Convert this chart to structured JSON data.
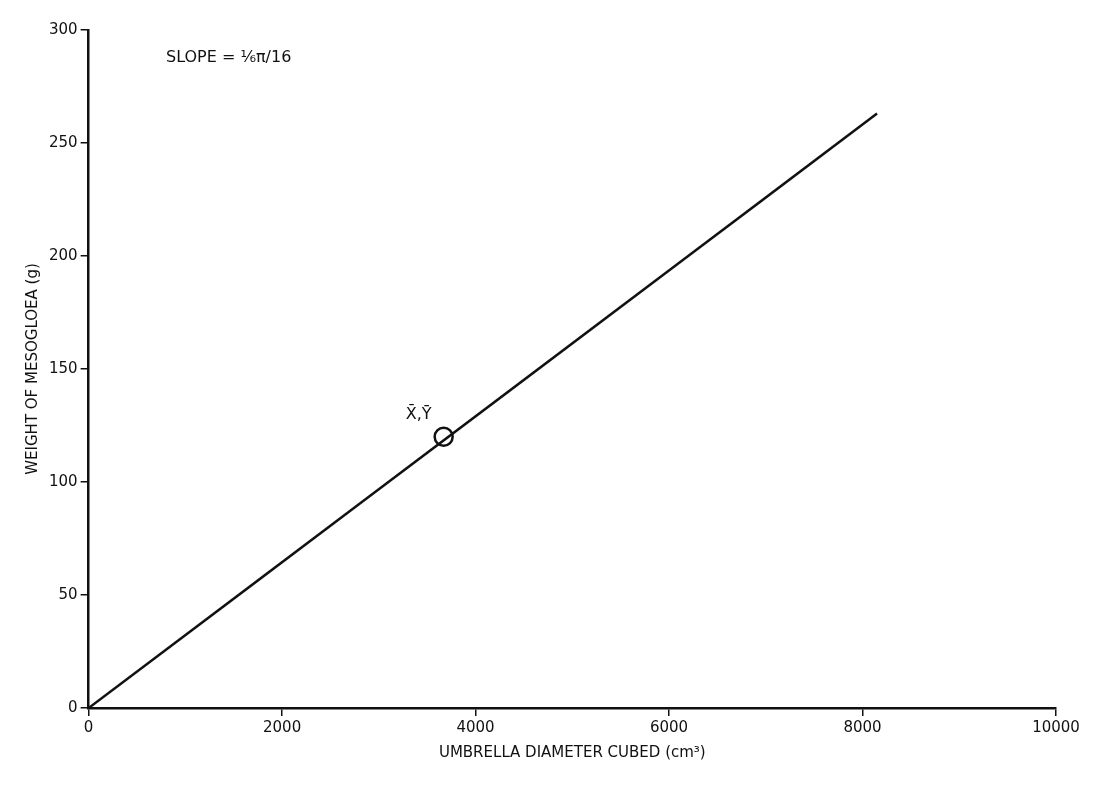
{
  "chart_data": {
    "type": "line",
    "xlabel": "UMBRELLA DIAMETER CUBED (cm³)",
    "ylabel": "WEIGHT OF MESOGLOEA (g)",
    "series": [
      {
        "color": "#111111",
        "x": [
          0,
          8150
        ],
        "values": [
          0,
          263
        ],
        "marker": "none"
      },
      {
        "type": "scatter",
        "color": "#111111",
        "x": [
          3670
        ],
        "values": [
          120
        ],
        "marker": "circle"
      }
    ],
    "xlim": [
      0,
      10000
    ],
    "xticks": [
      0,
      2000,
      4000,
      6000,
      8000,
      10000
    ],
    "ylim": [
      0,
      300
    ],
    "yticks": [
      0,
      50,
      100,
      150,
      200,
      250,
      300
    ],
    "grid": false,
    "legend": false,
    "annotations": [
      {
        "text": "X̄,Ȳ",
        "x": 3670,
        "y": 120
      },
      "SLOPE = ⅙π/16"
    ]
  }
}
